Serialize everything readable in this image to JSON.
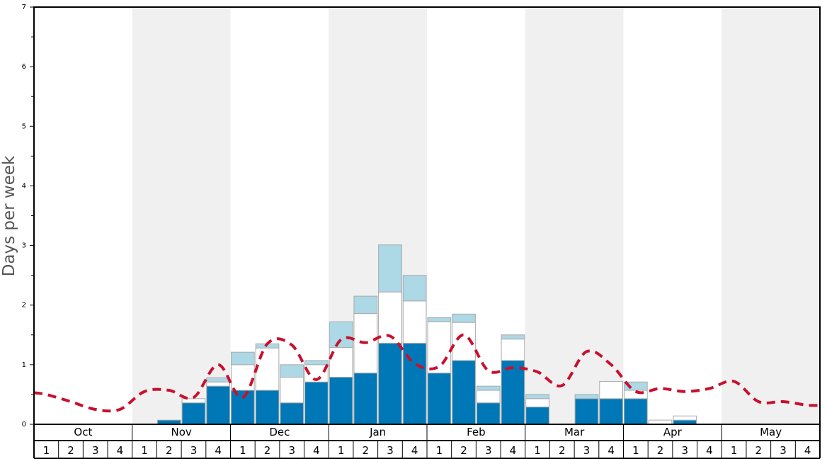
{
  "chart_data": {
    "type": "bar",
    "xlabel": "",
    "ylabel": "Days per week",
    "ylim": [
      0,
      7
    ],
    "yticks": [
      "0",
      "1",
      "2",
      "3",
      "4",
      "5",
      "6",
      "7"
    ],
    "months": [
      "Oct",
      "Nov",
      "Dec",
      "Jan",
      "Feb",
      "Mar",
      "Apr",
      "May"
    ],
    "week_labels": [
      "1",
      "2",
      "3",
      "4"
    ],
    "categories": [
      "Oct 1",
      "Oct 2",
      "Oct 3",
      "Oct 4",
      "Nov 1",
      "Nov 2",
      "Nov 3",
      "Nov 4",
      "Dec 1",
      "Dec 2",
      "Dec 3",
      "Dec 4",
      "Jan 1",
      "Jan 2",
      "Jan 3",
      "Jan 4",
      "Feb 1",
      "Feb 2",
      "Feb 3",
      "Feb 4",
      "Mar 1",
      "Mar 2",
      "Mar 3",
      "Mar 4",
      "Apr 1",
      "Apr 2",
      "Apr 3",
      "Apr 4",
      "May 1",
      "May 2",
      "May 3",
      "May 4"
    ],
    "series": [
      {
        "color": "#0077b6",
        "values": [
          0,
          0,
          0,
          0,
          0,
          0.07,
          0.36,
          0.64,
          0.57,
          0.57,
          0.36,
          0.71,
          0.79,
          0.86,
          1.36,
          1.36,
          0.86,
          1.07,
          0.36,
          1.07,
          0.29,
          0,
          0.43,
          0.43,
          0.43,
          0,
          0.07,
          0,
          0,
          0,
          0,
          0
        ]
      },
      {
        "color": "#ffffff",
        "values": [
          0,
          0,
          0,
          0,
          0,
          0,
          0.07,
          0.07,
          0.43,
          0.71,
          0.43,
          0.29,
          0.5,
          1.0,
          0.86,
          0.71,
          0.86,
          0.64,
          0.21,
          0.36,
          0.14,
          0,
          0,
          0.29,
          0.14,
          0.07,
          0.07,
          0,
          0,
          0,
          0,
          0
        ]
      },
      {
        "color": "#add8e6",
        "values": [
          0,
          0,
          0,
          0,
          0,
          0,
          0,
          0.07,
          0.21,
          0.07,
          0.21,
          0.07,
          0.43,
          0.29,
          0.79,
          0.43,
          0.07,
          0.14,
          0.07,
          0.07,
          0.07,
          0,
          0.07,
          0,
          0.14,
          0,
          0,
          0,
          0,
          0,
          0,
          0
        ]
      }
    ],
    "average_line": {
      "color": "#c8102e",
      "style": "dashed",
      "values": [
        0.5,
        0.38,
        0.25,
        0.25,
        0.55,
        0.57,
        0.45,
        1.0,
        0.45,
        1.35,
        1.33,
        0.75,
        1.42,
        1.37,
        1.48,
        1.02,
        0.97,
        1.5,
        0.9,
        0.95,
        0.88,
        0.65,
        1.22,
        1.0,
        0.55,
        0.6,
        0.55,
        0.6,
        0.72,
        0.38,
        0.38,
        0.32
      ]
    },
    "colors": {
      "shade_band": "#f0f0f0",
      "bar_edge": "#aaaaaa",
      "axis": "#000000"
    },
    "grid": false
  }
}
